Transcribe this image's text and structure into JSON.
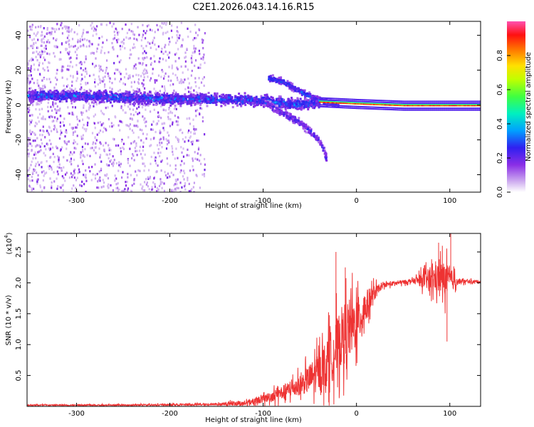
{
  "title": "C2E1.2026.043.14.16.R15",
  "colors": {
    "line": "#ee3333",
    "axis": "#000000",
    "background": "#ffffff",
    "spectrum_low": "#dcc8f5",
    "spectrum_mid": "#5a1ee6",
    "spectrum_high": "#ff2020"
  },
  "chart_data": [
    {
      "type": "heatmap",
      "name": "spectrogram",
      "xlabel": "Height of straight line (km)",
      "ylabel": "Frequency (Hz)",
      "xlim": [
        -353,
        133
      ],
      "ylim": [
        -50,
        48
      ],
      "xticks": [
        -300,
        -200,
        -100,
        0,
        100
      ],
      "yticks": [
        -40,
        -20,
        0,
        20,
        40
      ],
      "xticklabels": [
        "-300",
        "-200",
        "-100",
        "0",
        "100"
      ],
      "yticklabels": [
        "-40",
        "-20",
        "0",
        "20",
        "40"
      ],
      "colorbar": {
        "label": "Normalized spectral amplitude",
        "range": [
          0,
          1
        ],
        "ticks": [
          0.0,
          0.2,
          0.4,
          0.6,
          0.8
        ],
        "ticklabels": [
          "0.0",
          "0.2",
          "0.4",
          "0.6",
          "0.8"
        ],
        "colormap": [
          "#ffffff",
          "#c8a8f0",
          "#7a2ee6",
          "#1e1ef0",
          "#00c8ff",
          "#00ff90",
          "#a0ff00",
          "#ffff00",
          "#ff8000",
          "#ff0000",
          "#ff4080",
          "#ff60c0"
        ]
      },
      "main_band": [
        {
          "x": -353,
          "y": 6
        },
        {
          "x": -300,
          "y": 6
        },
        {
          "x": -250,
          "y": 5
        },
        {
          "x": -200,
          "y": 4
        },
        {
          "x": -150,
          "y": 4
        },
        {
          "x": -100,
          "y": 3
        },
        {
          "x": -70,
          "y": 1
        },
        {
          "x": -40,
          "y": 2
        },
        {
          "x": 0,
          "y": 1
        },
        {
          "x": 50,
          "y": 0
        },
        {
          "x": 100,
          "y": 0
        },
        {
          "x": 133,
          "y": 0
        }
      ],
      "branch_band": [
        {
          "x": -95,
          "y": 16
        },
        {
          "x": -80,
          "y": 14
        },
        {
          "x": -60,
          "y": 8
        },
        {
          "x": -40,
          "y": 3
        },
        {
          "x": -20,
          "y": 1
        }
      ],
      "descending_band": [
        {
          "x": -100,
          "y": 2
        },
        {
          "x": -80,
          "y": -4
        },
        {
          "x": -60,
          "y": -10
        },
        {
          "x": -40,
          "y": -20
        },
        {
          "x": -33,
          "y": -30
        }
      ]
    },
    {
      "type": "line",
      "name": "snr",
      "xlabel": "Height of straight line (km)",
      "ylabel": "SNR (10 * v/v)",
      "scale_label": "(x10",
      "scale_exp": "4",
      "scale_close": ")",
      "xlim": [
        -353,
        133
      ],
      "ylim": [
        0,
        2.8
      ],
      "xticks": [
        -300,
        -200,
        -100,
        0,
        100
      ],
      "yticks": [
        0.5,
        1.0,
        1.5,
        2.0,
        2.5
      ],
      "xticklabels": [
        "-300",
        "-200",
        "-100",
        "0",
        "100"
      ],
      "yticklabels": [
        "0.5",
        "1.0",
        "1.5",
        "2.0",
        "2.5"
      ],
      "envelope": [
        {
          "x": -353,
          "y": 0.02
        },
        {
          "x": -250,
          "y": 0.02
        },
        {
          "x": -160,
          "y": 0.03
        },
        {
          "x": -120,
          "y": 0.05
        },
        {
          "x": -100,
          "y": 0.12
        },
        {
          "x": -80,
          "y": 0.22
        },
        {
          "x": -60,
          "y": 0.35
        },
        {
          "x": -40,
          "y": 0.55
        },
        {
          "x": -25,
          "y": 0.85
        },
        {
          "x": -15,
          "y": 1.15
        },
        {
          "x": 0,
          "y": 1.35
        },
        {
          "x": 10,
          "y": 1.6
        },
        {
          "x": 20,
          "y": 1.85
        },
        {
          "x": 30,
          "y": 1.97
        },
        {
          "x": 45,
          "y": 2.0
        },
        {
          "x": 60,
          "y": 2.03
        },
        {
          "x": 75,
          "y": 2.05
        },
        {
          "x": 90,
          "y": 2.08
        },
        {
          "x": 100,
          "y": 2.05
        },
        {
          "x": 110,
          "y": 2.02
        },
        {
          "x": 133,
          "y": 2.02
        }
      ],
      "noise": [
        {
          "x": -353,
          "y": 0.01
        },
        {
          "x": -150,
          "y": 0.02
        },
        {
          "x": -100,
          "y": 0.08
        },
        {
          "x": -60,
          "y": 0.2
        },
        {
          "x": -30,
          "y": 0.5
        },
        {
          "x": -10,
          "y": 0.65
        },
        {
          "x": 10,
          "y": 0.35
        },
        {
          "x": 25,
          "y": 0.05
        },
        {
          "x": 60,
          "y": 0.04
        },
        {
          "x": 80,
          "y": 0.25
        },
        {
          "x": 95,
          "y": 0.35
        },
        {
          "x": 110,
          "y": 0.05
        },
        {
          "x": 133,
          "y": 0.02
        }
      ],
      "spikes": [
        {
          "x": -22,
          "y": 2.5
        },
        {
          "x": -12,
          "y": 2.25
        },
        {
          "x": 88,
          "y": 2.65
        },
        {
          "x": 92,
          "y": 2.6
        },
        {
          "x": 101,
          "y": 2.8
        },
        {
          "x": 97,
          "y": 1.05
        }
      ]
    }
  ]
}
